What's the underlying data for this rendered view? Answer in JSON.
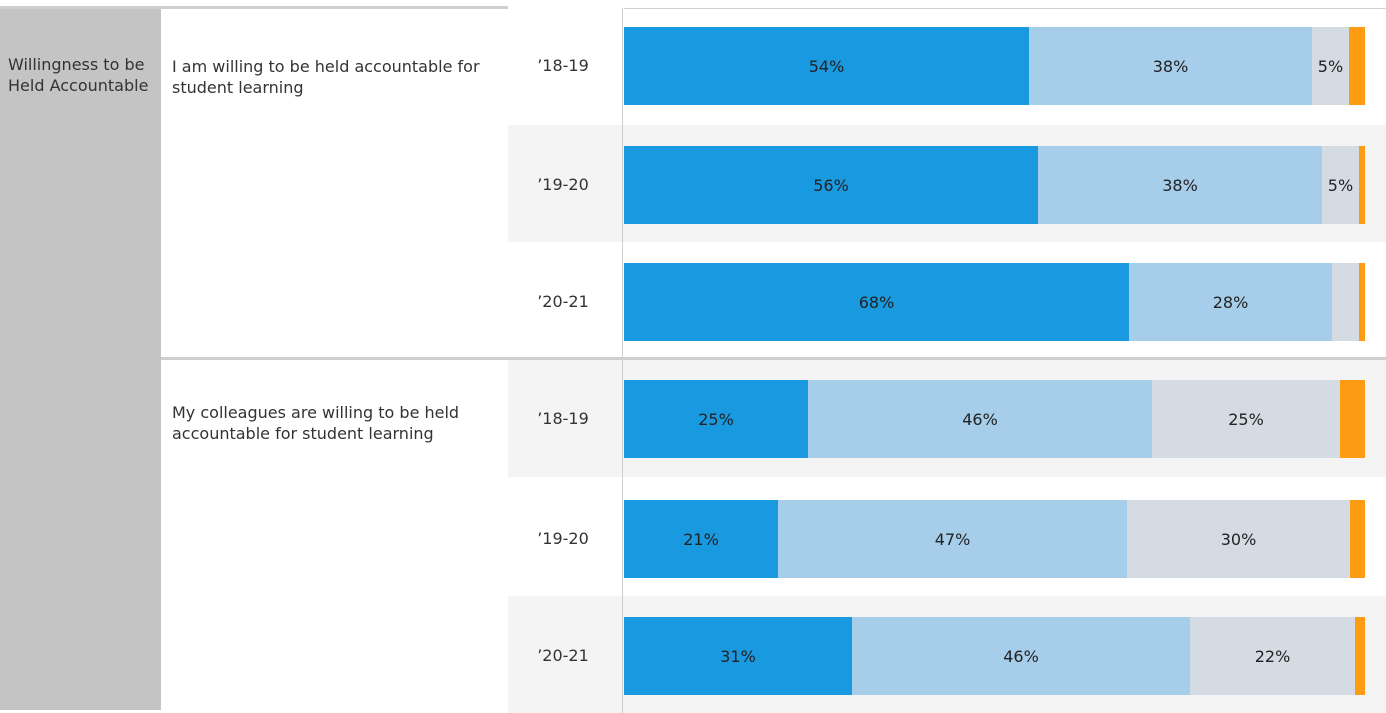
{
  "colors": {
    "strongly_agree": "#1999e0",
    "agree": "#a6cde9",
    "disagree": "#d4dbe3",
    "strongly_disagree": "#fd9b13"
  },
  "chart_data": {
    "type": "bar",
    "orientation": "horizontal",
    "stacked": true,
    "normalized": true,
    "category": "Willingness to be Held Accountable",
    "xlim": [
      0,
      100
    ],
    "groups": [
      {
        "question": "I am willing to be held accountable for student learning",
        "rows": [
          {
            "year": "’18-19",
            "segments": [
              54.5,
              38.1,
              4.9,
              2.2
            ],
            "labels": [
              "54%",
              "38%",
              "5%",
              ""
            ]
          },
          {
            "year": "’19-20",
            "segments": [
              55.9,
              38.3,
              5.0,
              0.8
            ],
            "labels": [
              "56%",
              "38%",
              "5%",
              ""
            ]
          },
          {
            "year": "’20-21",
            "segments": [
              68.1,
              27.5,
              3.6,
              0.8
            ],
            "labels": [
              "68%",
              "28%",
              "",
              ""
            ]
          }
        ]
      },
      {
        "question": "My colleagues are willing to be held accountable for student learning",
        "rows": [
          {
            "year": "’18-19",
            "segments": [
              24.8,
              46.4,
              25.4,
              3.4
            ],
            "labels": [
              "25%",
              "46%",
              "25%",
              ""
            ]
          },
          {
            "year": "’19-20",
            "segments": [
              20.8,
              47.1,
              30.1,
              2.0
            ],
            "labels": [
              "21%",
              "47%",
              "30%",
              ""
            ]
          },
          {
            "year": "’20-21",
            "segments": [
              30.8,
              45.6,
              22.3,
              1.3
            ],
            "labels": [
              "31%",
              "46%",
              "22%",
              ""
            ]
          }
        ]
      }
    ]
  }
}
